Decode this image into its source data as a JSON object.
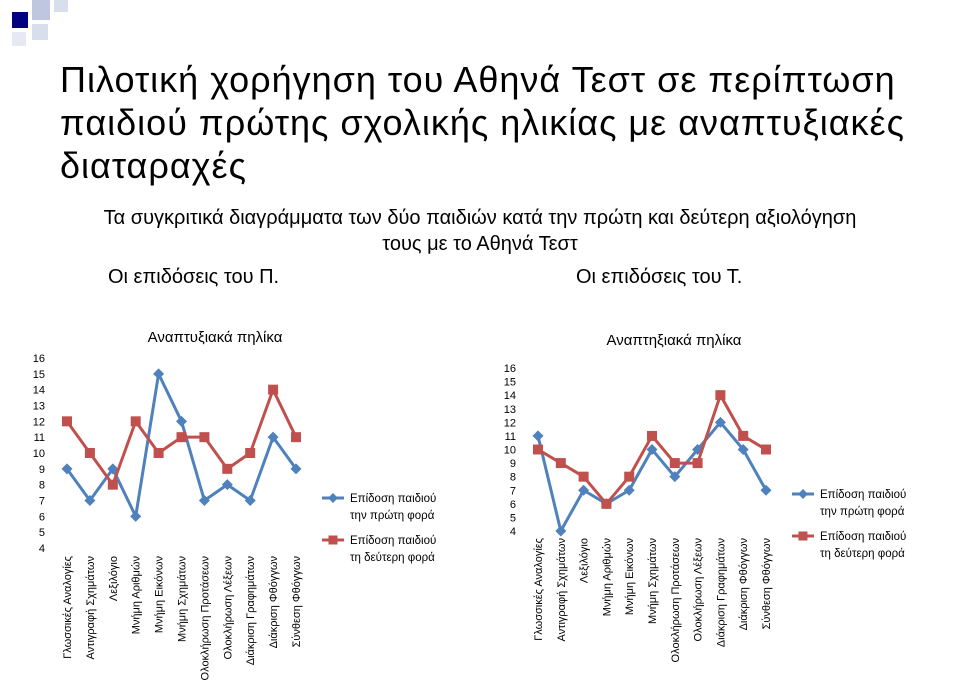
{
  "slide": {
    "title": "Πιλοτική χορήγηση του Αθηνά Τεστ σε περίπτωση παιδιού πρώτης σχολικής ηλικίας με αναπτυξιακές διαταραχές",
    "subtitle_line1": "Τα συγκριτικά διαγράμματα των δύο παιδιών κατά την πρώτη και δεύτερη αξιολόγηση",
    "subtitle_line2": "τους με το Αθηνά Τεστ",
    "perf_left": "Οι επιδόσεις του Π.",
    "perf_right": "Οι επιδόσεις του Τ."
  },
  "colors": {
    "series1": "#4F81BD",
    "series2": "#C0504D",
    "corner_dark": "#000080",
    "corner_light": "#BFC6DF"
  },
  "chart_data": [
    {
      "type": "line",
      "title": "Αναπτυξιακά πηλίκα",
      "categories": [
        "Γλωσσικές Αναλογίες",
        "Αντιγραφή Σχημάτων",
        "Λεξιλόγιο",
        "Μνήμη Αριθμών",
        "Μνήμη Εικόνων",
        "Μνήμη Σχημάτων",
        "Ολοκλήρωση Προτάσεων",
        "Ολοκλήρωση Λέξεων",
        "Διάκριση Γραφημάτων",
        "Διάκριση Φθόγγων",
        "Σύνθεση Φθόγγων"
      ],
      "series": [
        {
          "name": "Επίδοση παιδιού την πρώτη φορά",
          "values": [
            9,
            7,
            9,
            6,
            15,
            12,
            7,
            8,
            7,
            11,
            9
          ]
        },
        {
          "name": "Επίδοση παιδιού τη δεύτερη φορά",
          "values": [
            12,
            10,
            8,
            12,
            10,
            11,
            11,
            9,
            10,
            14,
            11
          ]
        }
      ],
      "ylim": [
        4,
        16
      ],
      "yticks": [
        "4",
        "5",
        "6",
        "7",
        "8",
        "9",
        "10",
        "11",
        "12",
        "13",
        "14",
        "15",
        "16"
      ],
      "legend_position": "right"
    },
    {
      "type": "line",
      "title": "Αναπτηξιακά πηλίκα",
      "categories": [
        "Γλωσσικές Αναλογίες",
        "Αντιγραφή Σχημάτων",
        "Λεξιλόγιο",
        "Μνήμη Αριθμών",
        "Μνήμη Εικόνων",
        "Μνήμη Σχημάτων",
        "Ολοκλήρωση Προτάσεων",
        "Ολοκλήρωση Λέξεων",
        "Διάκριση Γραφημάτων",
        "Διάκριση Φθόγγων",
        "Σύνθεση Φθόγγων"
      ],
      "series": [
        {
          "name": "Επίδοση παιδιού την πρώτη φορά",
          "values": [
            11,
            4,
            7,
            6,
            7,
            10,
            8,
            10,
            12,
            10,
            7
          ]
        },
        {
          "name": "Επίδοση παιδιού τη δεύτερη φορά",
          "values": [
            10,
            9,
            8,
            6,
            8,
            11,
            9,
            9,
            14,
            11,
            10
          ]
        }
      ],
      "ylim": [
        4,
        16
      ],
      "yticks": [
        "4",
        "5",
        "6",
        "7",
        "8",
        "9",
        "10",
        "11",
        "12",
        "13",
        "14",
        "15",
        "16"
      ],
      "legend_position": "right"
    }
  ]
}
